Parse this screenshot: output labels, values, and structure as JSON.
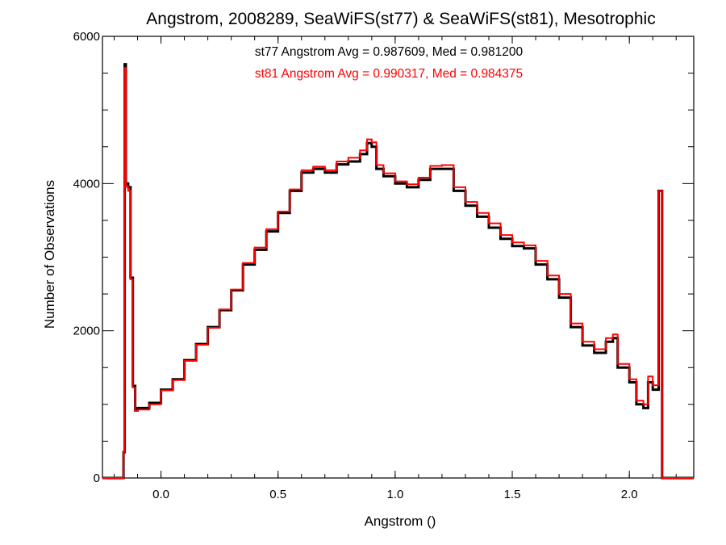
{
  "chart_data": {
    "type": "histogram",
    "title": "Angstrom, 2008289, SeaWiFS(st77) & SeaWiFS(st81), Mesotrophic",
    "xlabel": "Angstrom ()",
    "ylabel": "Number of Observations",
    "xlim": [
      -0.25,
      2.275
    ],
    "ylim": [
      0,
      6000
    ],
    "x_ticks": [
      "0.0",
      "0.5",
      "1.0",
      "1.5",
      "2.0"
    ],
    "y_ticks": [
      "0",
      "2000",
      "4000",
      "6000"
    ],
    "grid": false,
    "annotations": [
      {
        "text": "st77 Angstrom Avg = 0.987609, Med = 0.981200",
        "color": "#000000"
      },
      {
        "text": "st81 Angstrom Avg = 0.990317, Med = 0.984375",
        "color": "#ff0000"
      }
    ],
    "series": [
      {
        "color": "#000000",
        "x": [
          -0.25,
          -0.16,
          -0.155,
          -0.15,
          -0.14,
          -0.13,
          -0.12,
          -0.11,
          -0.1,
          -0.05,
          0.0,
          0.05,
          0.1,
          0.15,
          0.2,
          0.25,
          0.3,
          0.35,
          0.4,
          0.45,
          0.5,
          0.55,
          0.6,
          0.65,
          0.7,
          0.75,
          0.8,
          0.85,
          0.88,
          0.9,
          0.92,
          0.95,
          1.0,
          1.05,
          1.1,
          1.15,
          1.2,
          1.25,
          1.3,
          1.35,
          1.4,
          1.45,
          1.5,
          1.55,
          1.6,
          1.65,
          1.7,
          1.75,
          1.8,
          1.85,
          1.9,
          1.93,
          1.95,
          2.0,
          2.03,
          2.06,
          2.08,
          2.1,
          2.125,
          2.14,
          2.15,
          2.275
        ],
        "y": [
          0,
          350,
          5620,
          4000,
          3950,
          2720,
          1250,
          920,
          950,
          1020,
          1200,
          1340,
          1600,
          1820,
          2050,
          2280,
          2550,
          2900,
          3100,
          3350,
          3600,
          3900,
          4150,
          4200,
          4150,
          4260,
          4300,
          4400,
          4550,
          4500,
          4200,
          4100,
          4000,
          3950,
          4050,
          4200,
          4200,
          3900,
          3700,
          3550,
          3400,
          3250,
          3150,
          3120,
          2900,
          2700,
          2450,
          2050,
          1800,
          1700,
          1850,
          1900,
          1500,
          1300,
          1000,
          950,
          1300,
          1200,
          3900,
          0,
          0,
          0
        ]
      },
      {
        "color": "#ff0000",
        "x": [
          -0.25,
          -0.16,
          -0.155,
          -0.15,
          -0.14,
          -0.13,
          -0.12,
          -0.11,
          -0.1,
          -0.05,
          0.0,
          0.05,
          0.1,
          0.15,
          0.2,
          0.25,
          0.3,
          0.35,
          0.4,
          0.45,
          0.5,
          0.55,
          0.6,
          0.65,
          0.7,
          0.75,
          0.8,
          0.85,
          0.88,
          0.9,
          0.92,
          0.95,
          1.0,
          1.05,
          1.1,
          1.15,
          1.2,
          1.25,
          1.3,
          1.35,
          1.4,
          1.45,
          1.5,
          1.55,
          1.6,
          1.65,
          1.7,
          1.75,
          1.8,
          1.85,
          1.9,
          1.93,
          1.95,
          2.0,
          2.03,
          2.06,
          2.08,
          2.1,
          2.125,
          2.14,
          2.15,
          2.275
        ],
        "y": [
          0,
          350,
          5570,
          3960,
          3900,
          2700,
          1230,
          910,
          930,
          1000,
          1190,
          1330,
          1590,
          1810,
          2040,
          2290,
          2560,
          2920,
          3130,
          3380,
          3620,
          3920,
          4180,
          4230,
          4180,
          4300,
          4350,
          4450,
          4600,
          4560,
          4250,
          4140,
          4030,
          3990,
          4080,
          4240,
          4250,
          3950,
          3750,
          3600,
          3460,
          3300,
          3200,
          3160,
          2950,
          2750,
          2500,
          2100,
          1850,
          1750,
          1900,
          1950,
          1550,
          1340,
          1050,
          1000,
          1380,
          1260,
          3900,
          0,
          0,
          0
        ]
      }
    ]
  }
}
